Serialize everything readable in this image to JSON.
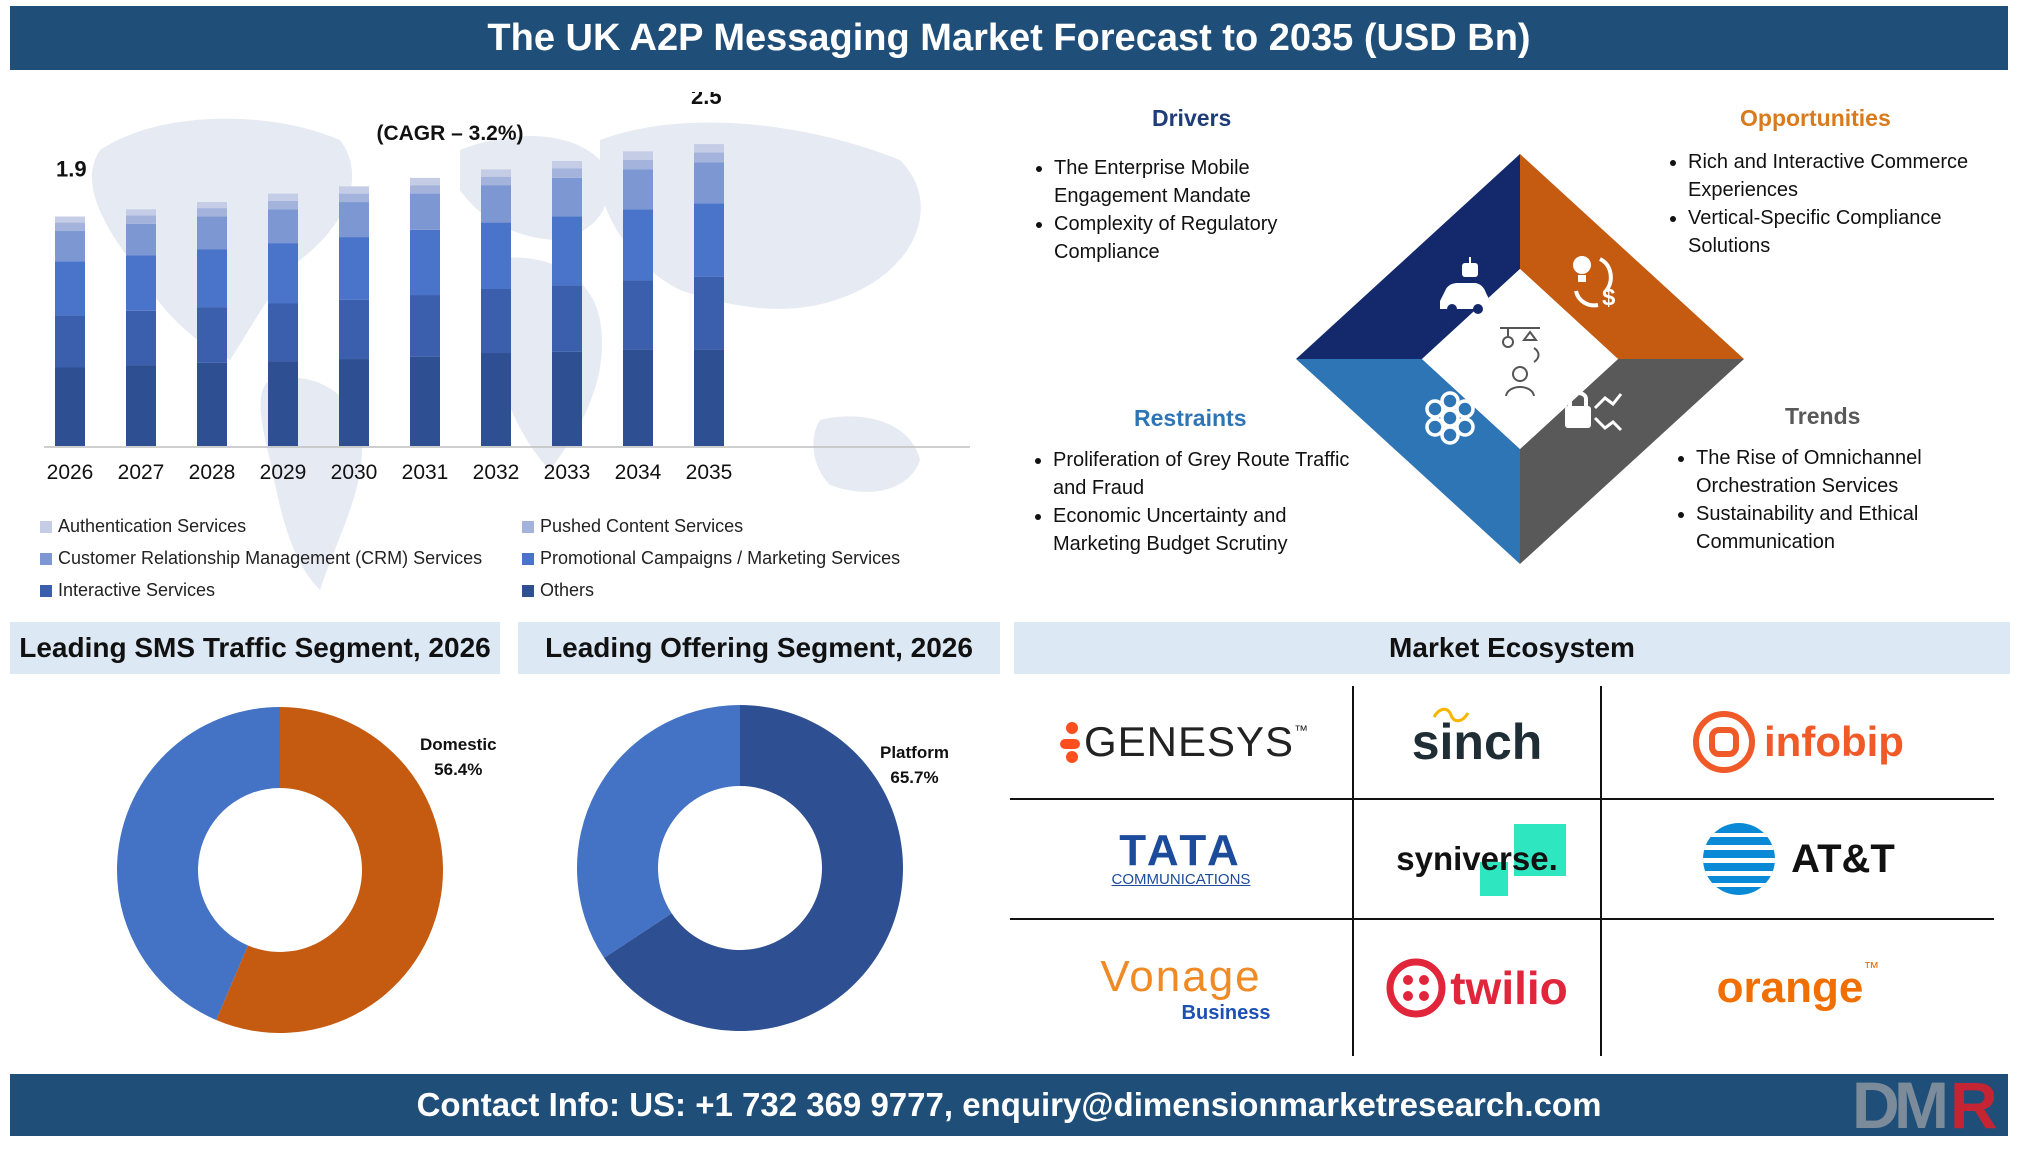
{
  "header": {
    "title": "The UK A2P Messaging Market Forecast to 2035 (USD Bn)"
  },
  "footer": {
    "contact": "Contact Info: US: +1 732 369 9777, enquiry@dimensionmarketresearch.com",
    "logo_text": "DMR"
  },
  "chart_data": [
    {
      "type": "bar",
      "stacked": true,
      "categories": [
        "2026",
        "2027",
        "2028",
        "2029",
        "2030",
        "2031",
        "2032",
        "2033",
        "2034",
        "2035"
      ],
      "totals": [
        1.9,
        1.96,
        2.02,
        2.09,
        2.15,
        2.22,
        2.29,
        2.36,
        2.44,
        2.5
      ],
      "series": [
        {
          "name": "Authentication Services",
          "color": "#c5cde6",
          "values": [
            0.05,
            0.05,
            0.05,
            0.06,
            0.06,
            0.06,
            0.06,
            0.06,
            0.07,
            0.07
          ]
        },
        {
          "name": "Pushed Content Services",
          "color": "#a3b3dc",
          "values": [
            0.07,
            0.07,
            0.07,
            0.07,
            0.07,
            0.07,
            0.07,
            0.08,
            0.08,
            0.08
          ]
        },
        {
          "name": "Customer Relationship Management (CRM) Services",
          "color": "#7c97d1",
          "values": [
            0.25,
            0.26,
            0.27,
            0.28,
            0.29,
            0.3,
            0.31,
            0.32,
            0.33,
            0.34
          ]
        },
        {
          "name": "Promotional Campaigns / Marketing Services",
          "color": "#4a74c9",
          "values": [
            0.45,
            0.46,
            0.48,
            0.5,
            0.52,
            0.54,
            0.55,
            0.57,
            0.59,
            0.61
          ]
        },
        {
          "name": "Interactive Services",
          "color": "#3b5fad",
          "values": [
            0.43,
            0.45,
            0.46,
            0.48,
            0.49,
            0.51,
            0.53,
            0.55,
            0.57,
            0.6
          ]
        },
        {
          "name": "Others",
          "color": "#2f4f93",
          "values": [
            0.65,
            0.67,
            0.69,
            0.7,
            0.72,
            0.74,
            0.77,
            0.78,
            0.8,
            0.8
          ]
        }
      ],
      "data_labels": {
        "first": "1.9",
        "last": "2.5"
      },
      "annotation": "(CAGR – 3.2%)",
      "ylim": [
        0,
        2.6
      ],
      "legend_position": "bottom"
    },
    {
      "type": "pie",
      "title": "Leading SMS Traffic Segment, 2026",
      "donut": true,
      "slices": [
        {
          "label": "Domestic",
          "value": 56.4,
          "color": "#c55a11"
        },
        {
          "label": "",
          "value": 43.6,
          "color": "#4472c4"
        }
      ],
      "label_text": {
        "name": "Domestic",
        "pct": "56.4%"
      }
    },
    {
      "type": "pie",
      "title": "Leading Offering Segment, 2026",
      "donut": true,
      "slices": [
        {
          "label": "Platform",
          "value": 65.7,
          "color": "#2f4f93"
        },
        {
          "label": "",
          "value": 34.3,
          "color": "#4472c4"
        }
      ],
      "label_text": {
        "name": "Platform",
        "pct": "65.7%"
      }
    }
  ],
  "legend": {
    "col1": [
      "Authentication Services",
      "Customer Relationship Management (CRM) Services",
      "Interactive Services"
    ],
    "col2": [
      "Pushed Content Services",
      "Promotional Campaigns / Marketing Services",
      "Others"
    ],
    "colors1": [
      "#c5cde6",
      "#7c97d1",
      "#3b5fad"
    ],
    "colors2": [
      "#a3b3dc",
      "#4a74c9",
      "#2f4f93"
    ]
  },
  "drivers": {
    "title": "Drivers",
    "color": "#1f3c7a",
    "items": [
      "The Enterprise Mobile Engagement Mandate",
      "Complexity of Regulatory Compliance"
    ]
  },
  "opportunities": {
    "title": "Opportunities",
    "color": "#d97a1c",
    "items": [
      "Rich and Interactive Commerce Experiences",
      "Vertical-Specific Compliance Solutions"
    ]
  },
  "restraints": {
    "title": "Restraints",
    "color": "#2e75b6",
    "items": [
      "Proliferation of Grey Route Traffic and Fraud",
      "Economic Uncertainty and Marketing Budget Scrutiny"
    ]
  },
  "trends": {
    "title": "Trends",
    "color": "#595959",
    "items": [
      "The Rise of Omnichannel Orchestration Services",
      "Sustainability and Ethical Communication"
    ]
  },
  "diamond": {
    "colors": {
      "top_left": "#14296b",
      "top_right": "#c55a11",
      "bottom_left": "#2e75b6",
      "bottom_right": "#595959"
    },
    "icons": [
      "robot-car-icon",
      "idea-dollar-icon",
      "gear-flower-icon",
      "lock-arrows-icon",
      "person-icon"
    ]
  },
  "sections": {
    "sms": "Leading SMS Traffic Segment, 2026",
    "offering": "Leading Offering Segment, 2026",
    "ecosystem": "Market Ecosystem"
  },
  "ecosystem": {
    "logos": [
      {
        "name": "GENESYS",
        "suffix": "™",
        "color": "#222222",
        "accent": "#ff4f1f"
      },
      {
        "name": "sinch",
        "color": "#1f2d35",
        "accent": "#f7b500"
      },
      {
        "name": "infobip",
        "color": "#f05a28"
      },
      {
        "name": "TATA",
        "sub": "COMMUNICATIONS",
        "color": "#1c4b9c"
      },
      {
        "name": "syniverse",
        "suffix": ".",
        "color": "#111111",
        "accent": "#2ee6c0"
      },
      {
        "name": "AT&T",
        "color": "#111111",
        "accent": "#0a8ad6"
      },
      {
        "name": "Vonage",
        "sub": "Business",
        "color": "#f08a24",
        "accent": "#1e50b3"
      },
      {
        "name": "twilio",
        "color": "#e1263b"
      },
      {
        "name": "orange",
        "suffix": "™",
        "color": "#f16e00"
      }
    ]
  }
}
